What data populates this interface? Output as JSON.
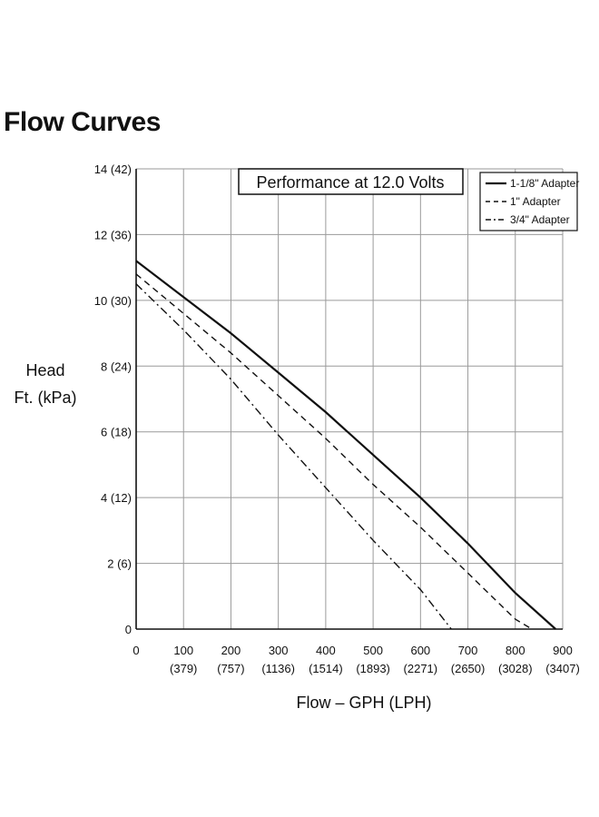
{
  "page_title": "Flow Curves",
  "chart_data": {
    "type": "line",
    "title": "Performance at 12.0 Volts",
    "xlabel": "Flow – GPH (LPH)",
    "ylabel": [
      "Head",
      "Ft. (kPa)"
    ],
    "xlim": [
      0,
      900
    ],
    "ylim": [
      0,
      14
    ],
    "x_ticks": [
      {
        "value": 0,
        "label": "0",
        "sub": ""
      },
      {
        "value": 100,
        "label": "100",
        "sub": "(379)"
      },
      {
        "value": 200,
        "label": "200",
        "sub": "(757)"
      },
      {
        "value": 300,
        "label": "300",
        "sub": "(1136)"
      },
      {
        "value": 400,
        "label": "400",
        "sub": "(1514)"
      },
      {
        "value": 500,
        "label": "500",
        "sub": "(1893)"
      },
      {
        "value": 600,
        "label": "600",
        "sub": "(2271)"
      },
      {
        "value": 700,
        "label": "700",
        "sub": "(2650)"
      },
      {
        "value": 800,
        "label": "800",
        "sub": "(3028)"
      },
      {
        "value": 900,
        "label": "900",
        "sub": "(3407)"
      }
    ],
    "y_ticks": [
      {
        "value": 0,
        "label": "0"
      },
      {
        "value": 2,
        "label": "2 (6)"
      },
      {
        "value": 4,
        "label": "4 (12)"
      },
      {
        "value": 6,
        "label": "6 (18)"
      },
      {
        "value": 8,
        "label": "8 (24)"
      },
      {
        "value": 10,
        "label": "10 (30)"
      },
      {
        "value": 12,
        "label": "12 (36)"
      },
      {
        "value": 14,
        "label": "14 (42)"
      }
    ],
    "grid": true,
    "legend_position": "top-right",
    "series": [
      {
        "name": "1-1/8\" Adapter",
        "style": "solid",
        "points": [
          [
            0,
            11.2
          ],
          [
            100,
            10.1
          ],
          [
            200,
            9.0
          ],
          [
            300,
            7.8
          ],
          [
            400,
            6.6
          ],
          [
            500,
            5.3
          ],
          [
            600,
            4.0
          ],
          [
            700,
            2.6
          ],
          [
            800,
            1.1
          ],
          [
            885,
            0
          ]
        ]
      },
      {
        "name": "1\" Adapter",
        "style": "dashed",
        "points": [
          [
            0,
            10.8
          ],
          [
            100,
            9.6
          ],
          [
            200,
            8.4
          ],
          [
            300,
            7.1
          ],
          [
            400,
            5.8
          ],
          [
            500,
            4.4
          ],
          [
            600,
            3.1
          ],
          [
            700,
            1.7
          ],
          [
            800,
            0.3
          ],
          [
            835,
            0
          ]
        ]
      },
      {
        "name": "3/4\" Adapter",
        "style": "dashdot",
        "points": [
          [
            0,
            10.5
          ],
          [
            100,
            9.1
          ],
          [
            200,
            7.6
          ],
          [
            300,
            5.9
          ],
          [
            400,
            4.3
          ],
          [
            500,
            2.7
          ],
          [
            600,
            1.2
          ],
          [
            665,
            0
          ]
        ]
      }
    ]
  }
}
